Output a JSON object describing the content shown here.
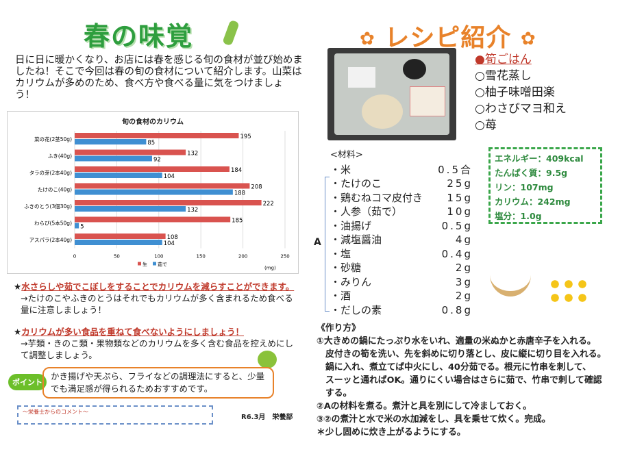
{
  "left": {
    "title": "春の味覚",
    "intro": "日に日に暖かくなり、お店には春を感じる旬の食材が並び始めましたね！そこで今回は春の旬の食材について紹介します。山菜はカリウムが多めのため、食べ方や食べる量に気をつけましょう！",
    "note1_head": "水さらしや茹でこぼしをすることでカリウムを減らすことができます。",
    "note1_body": "→たけのこやふきのとうはそれでもカリウムが多く含まれるため食べる量に注意しましょう！",
    "note2_head": "カリウムが多い食品を重ねて食べないようにしましょう！",
    "note2_body": "→芋類・きのこ類・果物類などのカリウムを多く含む食品を控えめにして調整しましょう。",
    "point_badge": "ポイント",
    "point_text": "かき揚げや天ぷら、フライなどの調理法にすると、少量でも満足感が得られるためおすすめです。",
    "comment_label": "～栄養士からのコメント～",
    "signature": "R6.3月　栄養部"
  },
  "chart_data": {
    "type": "bar",
    "title": "旬の食材のカリウム",
    "categories": [
      "菜の花(2茎50g)",
      "ふき(40g)",
      "タラの芽(2本40g)",
      "たけのこ(40g)",
      "ふきのとう(3個30g)",
      "わらび(5本50g)",
      "アスパラ(2本40g)"
    ],
    "series": [
      {
        "name": "生",
        "color": "#d9534f",
        "values": [
          195,
          132,
          184,
          208,
          222,
          185,
          108
        ]
      },
      {
        "name": "茹で",
        "color": "#3f8fd2",
        "values": [
          85,
          92,
          104,
          188,
          132,
          5,
          104
        ]
      }
    ],
    "xticks": [
      0,
      50,
      100,
      150,
      200,
      250
    ],
    "xlim": [
      0,
      250
    ],
    "unit": "(mg)",
    "legend": "bottom"
  },
  "right": {
    "title": "レシピ紹介",
    "menu": [
      "●筍ごはん",
      "○雪花蒸し",
      "○柚子味噌田楽",
      "○わさびマヨ和え",
      "○苺"
    ],
    "ingredients_label": "<材料>",
    "ingredients": [
      [
        "・米",
        "0.5合"
      ],
      [
        "・たけのこ",
        "25g"
      ],
      [
        "・鶏むねコマ皮付き",
        "15g"
      ],
      [
        "・人参（茹で）",
        "10g"
      ],
      [
        "・油揚げ",
        "0.5g"
      ],
      [
        "・減塩醤油",
        "4g"
      ],
      [
        "・塩",
        "0.4g"
      ],
      [
        "・砂糖",
        "2g"
      ],
      [
        "・みりん",
        "3g"
      ],
      [
        "・酒",
        "2g"
      ],
      [
        "・だしの素",
        "0.8g"
      ]
    ],
    "group_label": "A",
    "nutrition": [
      "エネルギー：409kcal",
      "たんぱく質：9.5g",
      "リン：107mg",
      "カリウム：242mg",
      "塩分：1.0g"
    ],
    "how_title": "《作り方》",
    "steps": [
      "①大きめの鍋にたっぷり水をいれ、適量の米ぬかと赤唐辛子を入れる。",
      "皮付きの筍を洗い、先を斜めに切り落とし、皮に縦に切り目を入れる。",
      "鍋に入れ、煮立てば中火にし、40分茹でる。根元に竹串を刺して、",
      "スーッと通ればOK。通りにくい場合はさらに茹で、竹串で刺して確認",
      "する。",
      "②Aの材料を煮る。煮汁と具を別にして冷ましておく。",
      "③②の煮汁と水で米の水加減をし、具を乗せて炊く。完成。",
      "＊少し固めに炊き上がるようにする。"
    ]
  }
}
